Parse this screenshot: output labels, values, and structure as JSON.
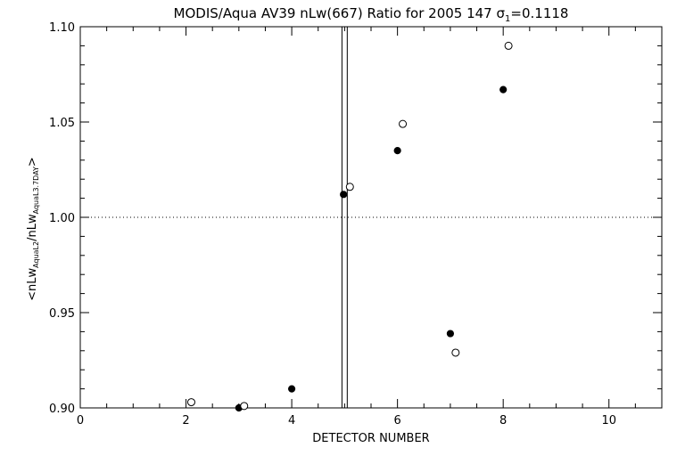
{
  "chart_data": {
    "type": "scatter",
    "title": {
      "prefix": "MODIS/Aqua AV39 nLw(667) Ratio for 2005 147 ",
      "sigma": "σ",
      "sigma_sub": "1",
      "suffix": "=0.1118"
    },
    "xlabel": "DETECTOR NUMBER",
    "ylabel": {
      "open": "<nLw",
      "sub1": "AquaL2",
      "mid": "/nLw",
      "sub2": "AquaL3.7DAY",
      "close": ">"
    },
    "xlim": [
      0,
      11
    ],
    "ylim": [
      0.9,
      1.1
    ],
    "x_ticks": [
      0,
      2,
      4,
      6,
      8,
      10
    ],
    "x_tick_labels": [
      "0",
      "2",
      "4",
      "6",
      "8",
      "10"
    ],
    "y_ticks": [
      0.9,
      0.95,
      1.0,
      1.05,
      1.1
    ],
    "y_tick_labels": [
      "0.90",
      "0.95",
      "1.00",
      "1.05",
      "1.10"
    ],
    "reference_line_y": 1.0,
    "vertical_lines_x": [
      4.95,
      5.05
    ],
    "series": [
      {
        "marker": "filled-circle",
        "points": [
          {
            "x": 3.0,
            "y": 0.9
          },
          {
            "x": 4.0,
            "y": 0.91
          },
          {
            "x": 4.98,
            "y": 1.012
          },
          {
            "x": 6.0,
            "y": 1.035
          },
          {
            "x": 7.0,
            "y": 0.939
          },
          {
            "x": 8.0,
            "y": 1.067
          }
        ]
      },
      {
        "marker": "open-circle",
        "points": [
          {
            "x": 2.1,
            "y": 0.903
          },
          {
            "x": 3.1,
            "y": 0.901
          },
          {
            "x": 5.1,
            "y": 1.016
          },
          {
            "x": 6.1,
            "y": 1.049
          },
          {
            "x": 7.1,
            "y": 0.929
          },
          {
            "x": 8.1,
            "y": 1.09
          }
        ]
      }
    ]
  }
}
